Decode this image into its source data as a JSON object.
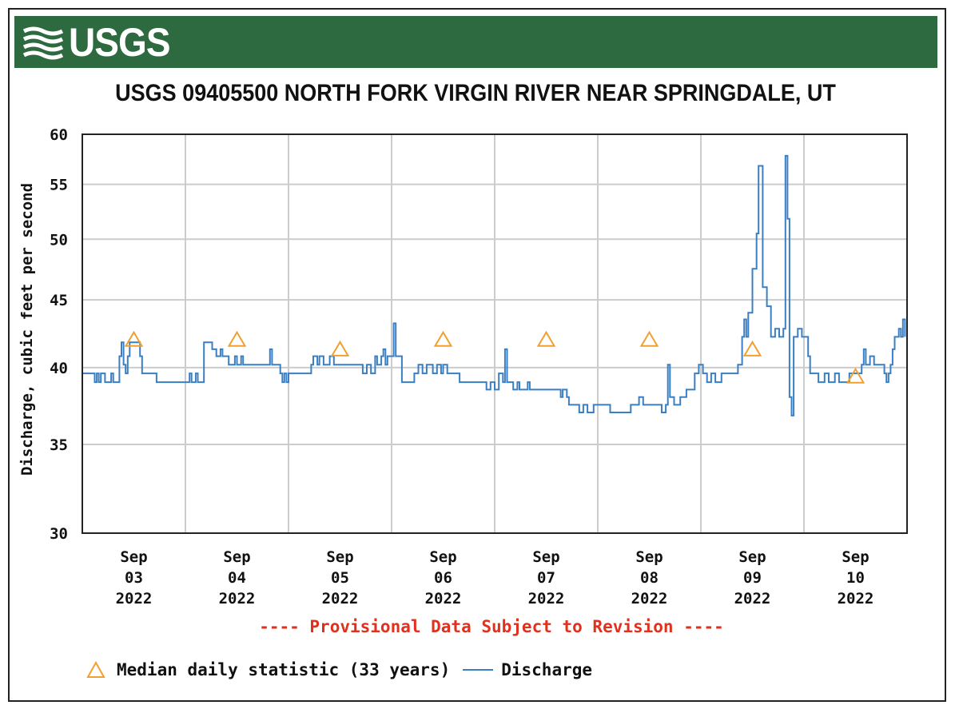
{
  "header": {
    "logo_text": "USGS"
  },
  "chart_data": {
    "type": "line",
    "title": "USGS 09405500 NORTH FORK VIRGIN RIVER NEAR SPRINGDALE, UT",
    "ylabel": "Discharge, cubic feet per second",
    "xlabel": "",
    "ylim": [
      30,
      60
    ],
    "yscale": "log",
    "yticks": [
      30,
      35,
      40,
      45,
      50,
      55,
      60
    ],
    "xlim": [
      2.5,
      10.5
    ],
    "x_unit": "day of September 2022",
    "x_ticks": [
      {
        "x": 3,
        "label": [
          "Sep",
          "03",
          "2022"
        ]
      },
      {
        "x": 4,
        "label": [
          "Sep",
          "04",
          "2022"
        ]
      },
      {
        "x": 5,
        "label": [
          "Sep",
          "05",
          "2022"
        ]
      },
      {
        "x": 6,
        "label": [
          "Sep",
          "06",
          "2022"
        ]
      },
      {
        "x": 7,
        "label": [
          "Sep",
          "07",
          "2022"
        ]
      },
      {
        "x": 8,
        "label": [
          "Sep",
          "08",
          "2022"
        ]
      },
      {
        "x": 9,
        "label": [
          "Sep",
          "09",
          "2022"
        ]
      },
      {
        "x": 10,
        "label": [
          "Sep",
          "10",
          "2022"
        ]
      }
    ],
    "grid": true,
    "series": [
      {
        "name": "Median daily statistic (33 years)",
        "kind": "marker",
        "marker": "triangle",
        "color": "#f0a030",
        "x": [
          3,
          4,
          5,
          6,
          7,
          8,
          9,
          10
        ],
        "values": [
          42,
          42,
          41.3,
          42,
          42,
          42,
          41.3,
          39.4
        ]
      },
      {
        "name": "Discharge",
        "kind": "line",
        "color": "#3a7fc4",
        "points": [
          [
            2.5,
            39.6
          ],
          [
            2.6,
            39.6
          ],
          [
            2.62,
            39.0
          ],
          [
            2.64,
            39.6
          ],
          [
            2.66,
            39.0
          ],
          [
            2.68,
            39.6
          ],
          [
            2.7,
            39.6
          ],
          [
            2.72,
            39.0
          ],
          [
            2.76,
            39.0
          ],
          [
            2.78,
            39.6
          ],
          [
            2.8,
            39.0
          ],
          [
            2.84,
            39.0
          ],
          [
            2.86,
            40.8
          ],
          [
            2.88,
            41.8
          ],
          [
            2.9,
            40.2
          ],
          [
            2.92,
            39.6
          ],
          [
            2.94,
            40.8
          ],
          [
            2.96,
            41.8
          ],
          [
            3.0,
            41.8
          ],
          [
            3.04,
            41.8
          ],
          [
            3.06,
            40.8
          ],
          [
            3.08,
            39.6
          ],
          [
            3.2,
            39.6
          ],
          [
            3.22,
            39.0
          ],
          [
            3.52,
            39.0
          ],
          [
            3.54,
            39.6
          ],
          [
            3.56,
            39.0
          ],
          [
            3.6,
            39.6
          ],
          [
            3.62,
            39.0
          ],
          [
            3.66,
            39.0
          ],
          [
            3.68,
            41.8
          ],
          [
            3.74,
            41.8
          ],
          [
            3.76,
            41.3
          ],
          [
            3.8,
            40.8
          ],
          [
            3.84,
            41.3
          ],
          [
            3.86,
            40.8
          ],
          [
            3.92,
            40.2
          ],
          [
            3.98,
            40.8
          ],
          [
            4.0,
            40.2
          ],
          [
            4.04,
            40.8
          ],
          [
            4.06,
            40.2
          ],
          [
            4.3,
            40.2
          ],
          [
            4.32,
            41.3
          ],
          [
            4.34,
            40.2
          ],
          [
            4.4,
            40.2
          ],
          [
            4.42,
            39.6
          ],
          [
            4.44,
            39.0
          ],
          [
            4.46,
            39.6
          ],
          [
            4.48,
            39.0
          ],
          [
            4.5,
            39.6
          ],
          [
            4.7,
            39.6
          ],
          [
            4.72,
            40.2
          ],
          [
            4.74,
            40.8
          ],
          [
            4.78,
            40.2
          ],
          [
            4.8,
            40.8
          ],
          [
            4.84,
            40.2
          ],
          [
            4.9,
            40.8
          ],
          [
            4.94,
            40.2
          ],
          [
            5.0,
            40.2
          ],
          [
            5.2,
            40.2
          ],
          [
            5.22,
            39.6
          ],
          [
            5.26,
            40.2
          ],
          [
            5.3,
            39.6
          ],
          [
            5.34,
            40.8
          ],
          [
            5.36,
            40.2
          ],
          [
            5.4,
            40.8
          ],
          [
            5.42,
            41.3
          ],
          [
            5.44,
            40.2
          ],
          [
            5.46,
            40.8
          ],
          [
            5.5,
            40.8
          ],
          [
            5.52,
            43.2
          ],
          [
            5.54,
            40.8
          ],
          [
            5.58,
            40.8
          ],
          [
            5.6,
            39.0
          ],
          [
            5.7,
            39.0
          ],
          [
            5.72,
            39.6
          ],
          [
            5.76,
            40.2
          ],
          [
            5.8,
            39.6
          ],
          [
            5.84,
            40.2
          ],
          [
            5.9,
            39.6
          ],
          [
            5.94,
            40.2
          ],
          [
            5.98,
            39.6
          ],
          [
            6.0,
            40.2
          ],
          [
            6.04,
            39.6
          ],
          [
            6.1,
            39.6
          ],
          [
            6.14,
            39.6
          ],
          [
            6.16,
            39.0
          ],
          [
            6.4,
            39.0
          ],
          [
            6.42,
            38.5
          ],
          [
            6.46,
            39.0
          ],
          [
            6.5,
            38.5
          ],
          [
            6.54,
            39.6
          ],
          [
            6.58,
            39.0
          ],
          [
            6.6,
            41.3
          ],
          [
            6.62,
            39.0
          ],
          [
            6.66,
            39.0
          ],
          [
            6.68,
            38.5
          ],
          [
            6.72,
            39.0
          ],
          [
            6.74,
            38.5
          ],
          [
            6.8,
            38.5
          ],
          [
            6.82,
            39.0
          ],
          [
            6.84,
            38.5
          ],
          [
            7.0,
            38.5
          ],
          [
            7.1,
            38.5
          ],
          [
            7.14,
            38.0
          ],
          [
            7.16,
            38.5
          ],
          [
            7.2,
            38.0
          ],
          [
            7.22,
            37.5
          ],
          [
            7.3,
            37.5
          ],
          [
            7.32,
            37.0
          ],
          [
            7.36,
            37.5
          ],
          [
            7.4,
            37.0
          ],
          [
            7.46,
            37.5
          ],
          [
            7.6,
            37.5
          ],
          [
            7.62,
            37.0
          ],
          [
            7.8,
            37.0
          ],
          [
            7.82,
            37.5
          ],
          [
            7.86,
            37.5
          ],
          [
            7.9,
            38.0
          ],
          [
            7.94,
            37.5
          ],
          [
            8.0,
            37.5
          ],
          [
            8.1,
            37.5
          ],
          [
            8.12,
            37.0
          ],
          [
            8.16,
            37.5
          ],
          [
            8.18,
            40.2
          ],
          [
            8.2,
            38.0
          ],
          [
            8.24,
            37.5
          ],
          [
            8.3,
            38.0
          ],
          [
            8.36,
            38.5
          ],
          [
            8.4,
            38.5
          ],
          [
            8.44,
            39.6
          ],
          [
            8.48,
            40.2
          ],
          [
            8.52,
            39.6
          ],
          [
            8.56,
            39.0
          ],
          [
            8.6,
            39.6
          ],
          [
            8.64,
            39.0
          ],
          [
            8.7,
            39.6
          ],
          [
            8.8,
            39.6
          ],
          [
            8.86,
            40.2
          ],
          [
            8.9,
            42.2
          ],
          [
            8.92,
            43.5
          ],
          [
            8.94,
            42.2
          ],
          [
            8.96,
            44.0
          ],
          [
            9.0,
            47.5
          ],
          [
            9.04,
            50.5
          ],
          [
            9.06,
            56.8
          ],
          [
            9.1,
            46.0
          ],
          [
            9.14,
            44.5
          ],
          [
            9.18,
            42.2
          ],
          [
            9.22,
            42.8
          ],
          [
            9.26,
            42.2
          ],
          [
            9.3,
            42.8
          ],
          [
            9.32,
            57.8
          ],
          [
            9.34,
            51.8
          ],
          [
            9.36,
            38.0
          ],
          [
            9.38,
            36.8
          ],
          [
            9.4,
            42.2
          ],
          [
            9.44,
            42.8
          ],
          [
            9.48,
            42.2
          ],
          [
            9.52,
            42.2
          ],
          [
            9.54,
            40.8
          ],
          [
            9.56,
            39.6
          ],
          [
            9.62,
            39.6
          ],
          [
            9.64,
            39.0
          ],
          [
            9.7,
            39.6
          ],
          [
            9.74,
            39.0
          ],
          [
            9.8,
            39.6
          ],
          [
            9.84,
            39.0
          ],
          [
            9.9,
            39.0
          ],
          [
            9.94,
            39.6
          ],
          [
            10.0,
            39.6
          ],
          [
            10.06,
            40.2
          ],
          [
            10.08,
            41.3
          ],
          [
            10.1,
            40.2
          ],
          [
            10.14,
            40.8
          ],
          [
            10.18,
            40.2
          ],
          [
            10.24,
            40.2
          ],
          [
            10.28,
            39.6
          ],
          [
            10.3,
            39.0
          ],
          [
            10.32,
            39.6
          ],
          [
            10.34,
            40.2
          ],
          [
            10.36,
            41.3
          ],
          [
            10.38,
            42.2
          ],
          [
            10.42,
            42.8
          ],
          [
            10.44,
            42.2
          ],
          [
            10.46,
            43.5
          ],
          [
            10.48,
            42.2
          ]
        ]
      }
    ],
    "note": "---- Provisional Data Subject to Revision ----",
    "legend": {
      "position": "bottom-left",
      "entries": [
        "Median daily statistic (33 years)",
        "Discharge"
      ]
    }
  }
}
